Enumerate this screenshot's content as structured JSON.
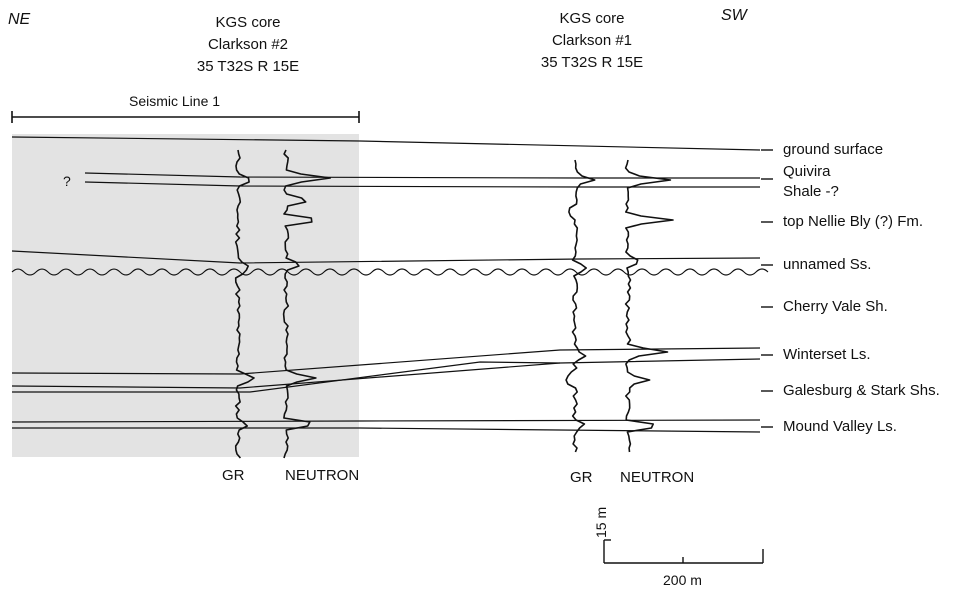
{
  "orientation": {
    "left": "NE",
    "right": "SW"
  },
  "wells": [
    {
      "header": [
        "KGS core",
        "Clarkson #2",
        "35 T32S R 15E"
      ],
      "log_labels": [
        "GR",
        "NEUTRON"
      ]
    },
    {
      "header": [
        "KGS core",
        "Clarkson #1",
        "35 T32S R 15E"
      ],
      "log_labels": [
        "GR",
        "NEUTRON"
      ]
    }
  ],
  "seismic_line_label": "Seismic Line 1",
  "uncertain_marker": "?",
  "formation_labels": [
    "ground surface",
    "Quivira",
    "Shale -?",
    "top Nellie Bly (?) Fm.",
    "unnamed Ss.",
    "Cherry Vale Sh.",
    "Winterset Ls.",
    "Galesburg & Stark Shs.",
    "Mound Valley Ls."
  ],
  "scale_bar": {
    "vertical": "15 m",
    "horizontal": "200 m"
  },
  "colors": {
    "shading": "#e3e3e3",
    "ink": "#111111",
    "background": "#ffffff"
  }
}
